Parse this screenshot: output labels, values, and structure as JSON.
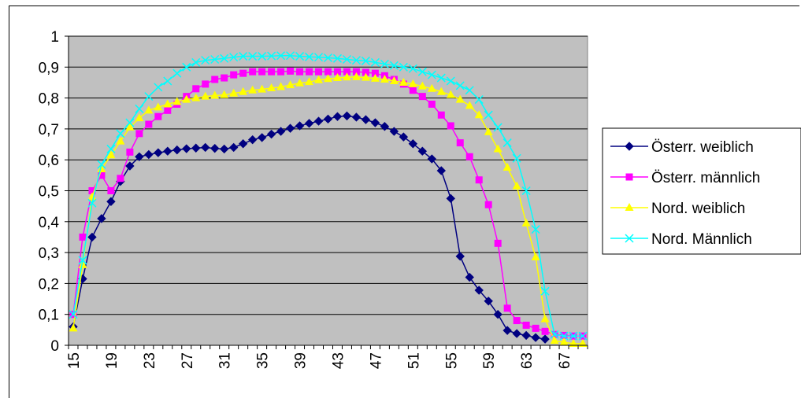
{
  "chart_data": {
    "type": "line",
    "title": "",
    "xlabel": "",
    "ylabel": "",
    "x": [
      15,
      16,
      17,
      18,
      19,
      20,
      21,
      22,
      23,
      24,
      25,
      26,
      27,
      28,
      29,
      30,
      31,
      32,
      33,
      34,
      35,
      36,
      37,
      38,
      39,
      40,
      41,
      42,
      43,
      44,
      45,
      46,
      47,
      48,
      49,
      50,
      51,
      52,
      53,
      54,
      55,
      56,
      57,
      58,
      59,
      60,
      61,
      62,
      63,
      64,
      65,
      66,
      67,
      68,
      69
    ],
    "x_tick_labels": [
      "15",
      "19",
      "23",
      "27",
      "31",
      "35",
      "39",
      "43",
      "47",
      "51",
      "55",
      "59",
      "63",
      "67"
    ],
    "y_tick_labels": [
      "0",
      "0,1",
      "0,2",
      "0,3",
      "0,4",
      "0,5",
      "0,6",
      "0,7",
      "0,8",
      "0,9",
      "1"
    ],
    "ylim": [
      0,
      1
    ],
    "grid": "horizontal",
    "plot_background": "#c0c0c0",
    "legend_position": "right",
    "series": [
      {
        "name": "Österr. weiblich",
        "color": "#000080",
        "marker": "diamond",
        "values": [
          0.06,
          0.215,
          0.35,
          0.41,
          0.465,
          0.53,
          0.58,
          0.61,
          0.617,
          0.623,
          0.628,
          0.632,
          0.636,
          0.638,
          0.64,
          0.637,
          0.635,
          0.64,
          0.652,
          0.665,
          0.672,
          0.683,
          0.692,
          0.702,
          0.71,
          0.718,
          0.725,
          0.732,
          0.74,
          0.742,
          0.738,
          0.73,
          0.72,
          0.708,
          0.692,
          0.674,
          0.652,
          0.628,
          0.603,
          0.565,
          0.475,
          0.288,
          0.22,
          0.178,
          0.143,
          0.1,
          0.048,
          0.038,
          0.032,
          0.025,
          0.02,
          null,
          null,
          null,
          null
        ]
      },
      {
        "name": "Österr. männlich",
        "color": "#ff00ff",
        "marker": "square",
        "values": [
          0.1,
          0.35,
          0.5,
          0.55,
          0.5,
          0.54,
          0.625,
          0.685,
          0.715,
          0.74,
          0.76,
          0.78,
          0.805,
          0.83,
          0.845,
          0.86,
          0.865,
          0.875,
          0.88,
          0.885,
          0.885,
          0.885,
          0.885,
          0.887,
          0.885,
          0.885,
          0.885,
          0.885,
          0.885,
          0.885,
          0.885,
          0.883,
          0.88,
          0.872,
          0.86,
          0.845,
          0.825,
          0.805,
          0.78,
          0.745,
          0.71,
          0.655,
          0.61,
          0.535,
          0.455,
          0.33,
          0.12,
          0.08,
          0.065,
          0.055,
          0.045,
          0.035,
          0.032,
          0.03,
          0.03
        ]
      },
      {
        "name": "Nord. weiblich",
        "color": "#ffff00",
        "marker": "triangle",
        "values": [
          0.055,
          0.26,
          0.48,
          0.57,
          0.615,
          0.66,
          0.705,
          0.735,
          0.76,
          0.77,
          0.78,
          0.788,
          0.795,
          0.8,
          0.805,
          0.808,
          0.81,
          0.815,
          0.82,
          0.825,
          0.828,
          0.832,
          0.836,
          0.842,
          0.848,
          0.852,
          0.858,
          0.862,
          0.865,
          0.867,
          0.868,
          0.866,
          0.863,
          0.86,
          0.855,
          0.85,
          0.845,
          0.838,
          0.83,
          0.82,
          0.81,
          0.795,
          0.775,
          0.745,
          0.69,
          0.635,
          0.575,
          0.515,
          0.395,
          0.285,
          0.085,
          0.015,
          0.01,
          0.005,
          0.005
        ]
      },
      {
        "name": "Nord. Männlich",
        "color": "#00ffff",
        "marker": "x",
        "values": [
          0.1,
          0.275,
          0.46,
          0.585,
          0.635,
          0.685,
          0.72,
          0.765,
          0.805,
          0.835,
          0.855,
          0.88,
          0.9,
          0.915,
          0.922,
          0.925,
          0.928,
          0.932,
          0.935,
          0.935,
          0.935,
          0.936,
          0.937,
          0.937,
          0.935,
          0.933,
          0.932,
          0.93,
          0.928,
          0.925,
          0.922,
          0.92,
          0.915,
          0.91,
          0.905,
          0.9,
          0.895,
          0.885,
          0.875,
          0.865,
          0.855,
          0.84,
          0.825,
          0.795,
          0.745,
          0.705,
          0.655,
          0.605,
          0.5,
          0.375,
          0.175,
          0.035,
          0.03,
          0.03,
          0.03
        ]
      }
    ]
  }
}
